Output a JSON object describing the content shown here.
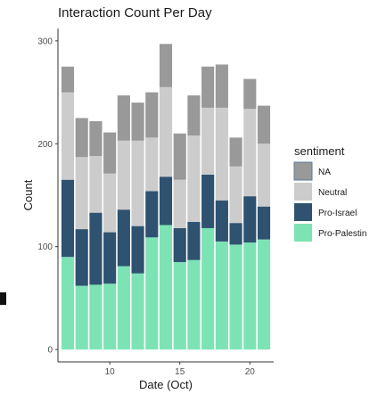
{
  "chart_data": {
    "type": "bar",
    "stacked": true,
    "title": "Interaction Count Per Day",
    "xlabel": "Date (Oct)",
    "ylabel": "Count",
    "x": [
      7,
      8,
      9,
      10,
      11,
      12,
      13,
      14,
      15,
      16,
      17,
      18,
      19,
      20,
      21
    ],
    "xticks": [
      10,
      15,
      20
    ],
    "yticks": [
      0,
      100,
      200,
      300
    ],
    "xlim": [
      6.3,
      21.7
    ],
    "ylim": [
      -12,
      312
    ],
    "grid": false,
    "legend": {
      "title": "sentiment",
      "position": "right"
    },
    "series": [
      {
        "name": "Pro-Palestin",
        "color": "#7de3b5",
        "values": [
          90,
          62,
          63,
          64,
          81,
          74,
          109,
          121,
          85,
          87,
          118,
          105,
          102,
          104,
          107
        ]
      },
      {
        "name": "Pro-Israel",
        "color": "#2e5270",
        "values": [
          75,
          55,
          70,
          50,
          55,
          46,
          45,
          47,
          33,
          37,
          52,
          40,
          21,
          45,
          32
        ]
      },
      {
        "name": "Neutral",
        "color": "#cccccc",
        "values": [
          85,
          70,
          55,
          57,
          67,
          83,
          52,
          87,
          47,
          84,
          65,
          90,
          55,
          85,
          61
        ]
      },
      {
        "name": "NA",
        "color": "#999999",
        "values": [
          25,
          38,
          34,
          40,
          44,
          37,
          44,
          42,
          45,
          39,
          40,
          42,
          28,
          29,
          37
        ]
      }
    ]
  }
}
